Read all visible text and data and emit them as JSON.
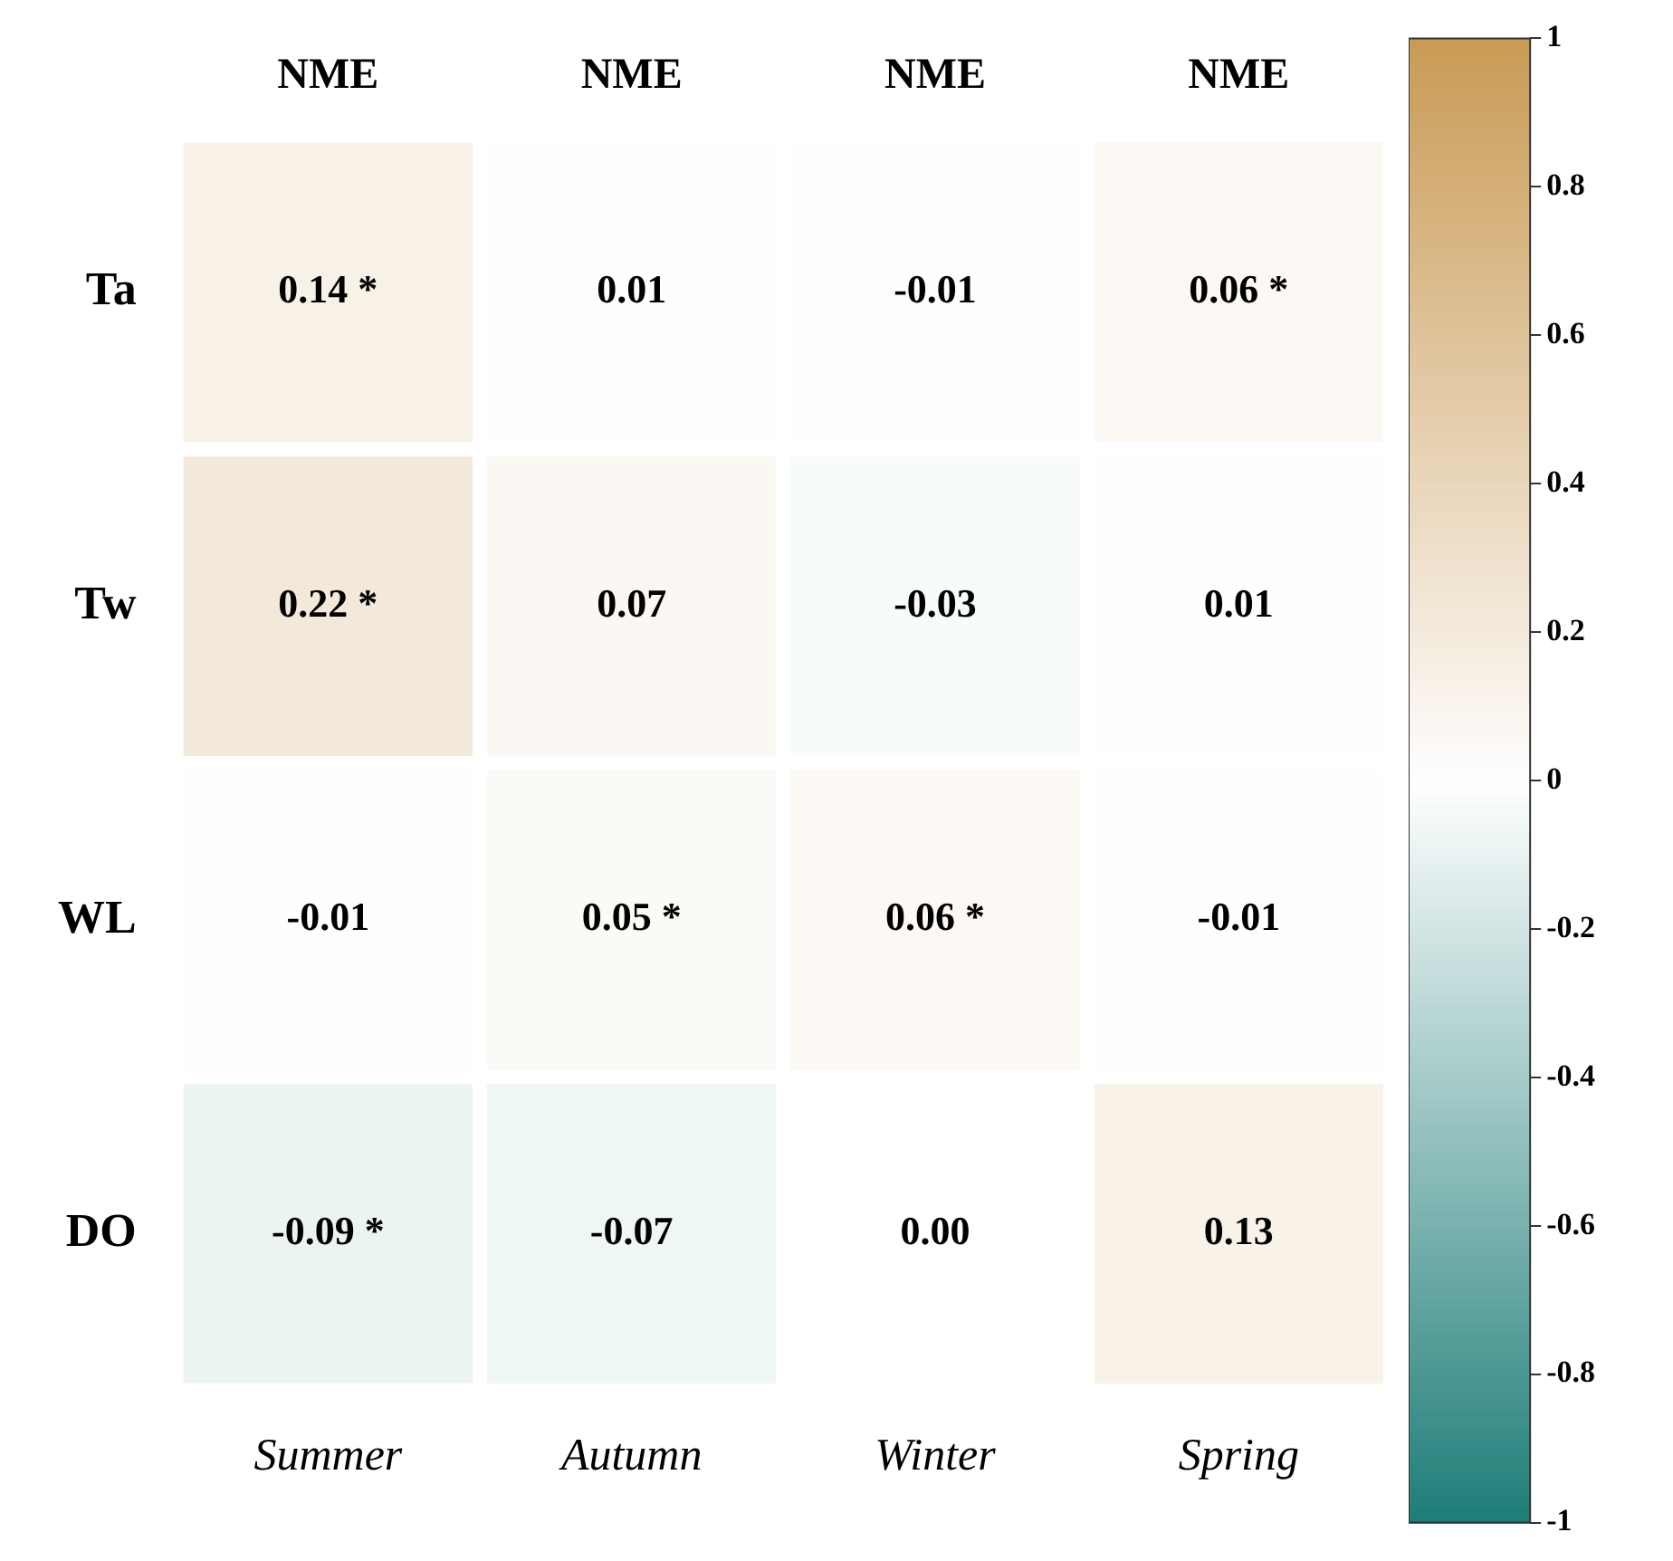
{
  "chart_data": {
    "type": "heatmap",
    "categories": [
      "Summer",
      "Autumn",
      "Winter",
      "Spring"
    ],
    "y_categories": [
      "Ta",
      "Tw",
      "WL",
      "DO"
    ],
    "cells": [
      [
        0.14,
        0.01,
        -0.01,
        0.06
      ],
      [
        0.22,
        0.07,
        -0.03,
        0.01
      ],
      [
        -0.01,
        0.05,
        0.06,
        -0.01
      ],
      [
        -0.09,
        -0.07,
        0.0,
        0.13
      ]
    ],
    "cell_labels": [
      [
        "0.14 *",
        "0.01",
        "-0.01",
        "0.06 *"
      ],
      [
        "0.22 *",
        "0.07",
        "-0.03",
        "0.01"
      ],
      [
        "-0.01",
        "0.05 *",
        "0.06 *",
        "-0.01"
      ],
      [
        "-0.09 *",
        "-0.07",
        "0.00",
        "0.13"
      ]
    ],
    "annotations": [
      "NME",
      "NME",
      "NME",
      "NME"
    ],
    "clim": [
      -1,
      1
    ],
    "cticks": [
      -1,
      -0.8,
      -0.6,
      -0.4,
      -0.2,
      0,
      0.2,
      0.4,
      0.6,
      0.8,
      1
    ]
  }
}
